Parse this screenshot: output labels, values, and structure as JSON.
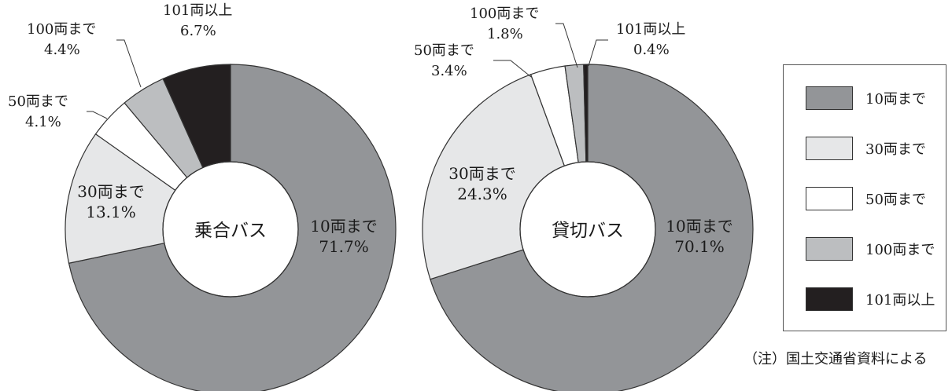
{
  "chart_data": [
    {
      "type": "pie",
      "center_label": "乗合バス",
      "categories": [
        "10両まで",
        "30両まで",
        "50両まで",
        "100両まで",
        "101両以上"
      ],
      "values": [
        71.7,
        13.1,
        4.1,
        4.4,
        6.7
      ],
      "value_labels": [
        "71.7%",
        "13.1%",
        "4.1%",
        "4.4%",
        "6.7%"
      ],
      "donut": true
    },
    {
      "type": "pie",
      "center_label": "貸切バス",
      "categories": [
        "10両まで",
        "30両まで",
        "50両まで",
        "100両まで",
        "101両以上"
      ],
      "values": [
        70.1,
        24.3,
        3.4,
        1.8,
        0.4
      ],
      "value_labels": [
        "70.1%",
        "24.3%",
        "3.4%",
        "1.8%",
        "0.4%"
      ],
      "donut": true
    }
  ],
  "colors": [
    "#939598",
    "#e6e7e8",
    "#ffffff",
    "#bcbec0",
    "#231f20"
  ],
  "legend": {
    "items": [
      "10両まで",
      "30両まで",
      "50両まで",
      "100両まで",
      "101両以上"
    ],
    "placement": "right"
  },
  "note": "（注）国土交通省資料による"
}
